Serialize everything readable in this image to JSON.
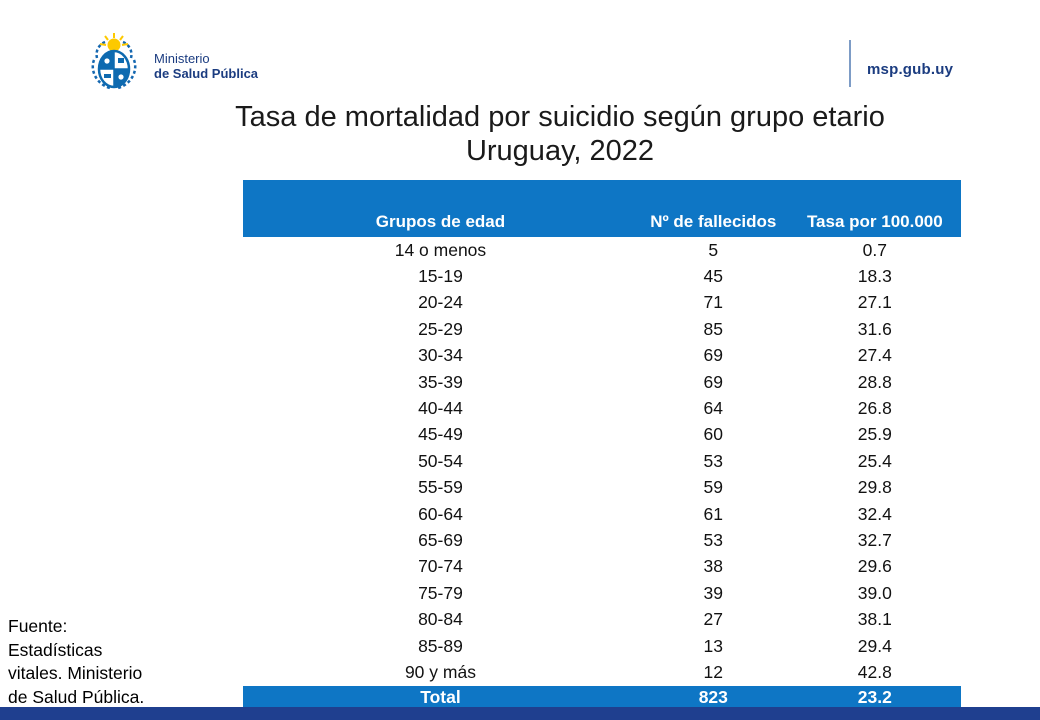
{
  "header": {
    "ministry_line1": "Ministerio",
    "ministry_line2": "de Salud Pública",
    "site": "msp.gub.uy"
  },
  "title": {
    "line1": "Tasa de mortalidad por suicidio según grupo etario",
    "line2": "Uruguay, 2022"
  },
  "chart_data": {
    "type": "table",
    "columns": [
      "Grupos de edad",
      "Nº de fallecidos",
      "Tasa por 100.000"
    ],
    "rows": [
      [
        "14 o menos",
        "5",
        "0.7"
      ],
      [
        "15-19",
        "45",
        "18.3"
      ],
      [
        "20-24",
        "71",
        "27.1"
      ],
      [
        "25-29",
        "85",
        "31.6"
      ],
      [
        "30-34",
        "69",
        "27.4"
      ],
      [
        "35-39",
        "69",
        "28.8"
      ],
      [
        "40-44",
        "64",
        "26.8"
      ],
      [
        "45-49",
        "60",
        "25.9"
      ],
      [
        "50-54",
        "53",
        "25.4"
      ],
      [
        "55-59",
        "59",
        "29.8"
      ],
      [
        "60-64",
        "61",
        "32.4"
      ],
      [
        "65-69",
        "53",
        "32.7"
      ],
      [
        "70-74",
        "38",
        "29.6"
      ],
      [
        "75-79",
        "39",
        "39.0"
      ],
      [
        "80-84",
        "27",
        "38.1"
      ],
      [
        "85-89",
        "13",
        "29.4"
      ],
      [
        "90 y más",
        "12",
        "42.8"
      ]
    ],
    "total": {
      "label": "Total",
      "deaths": "823",
      "rate": "23.2"
    },
    "title": "Tasa de mortalidad por suicidio según grupo etario, Uruguay, 2022"
  },
  "source": {
    "lines": [
      "Fuente:",
      "Estadísticas",
      "vitales. Ministerio",
      "de Salud Pública."
    ]
  },
  "colors": {
    "table_blue": "#0e76c5",
    "footer_navy": "#1f3f8f",
    "brand_navy": "#1b3c80",
    "sun_yellow": "#fdc900"
  }
}
